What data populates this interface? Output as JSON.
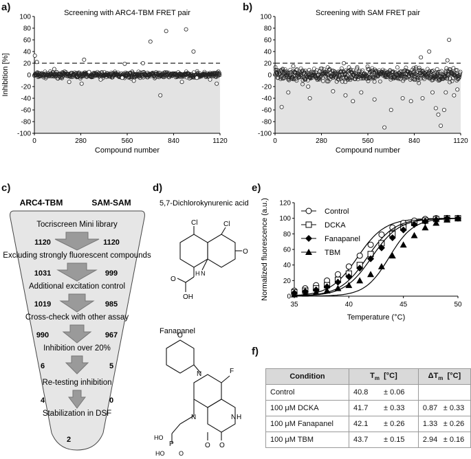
{
  "panels": {
    "a": "a)",
    "b": "b)",
    "c": "c)",
    "d": "d)",
    "e": "e)",
    "f": "f)"
  },
  "chart_data": [
    {
      "id": "a",
      "type": "scatter",
      "title": "Screening with ARC4-TBM FRET pair",
      "xlabel": "Compound number",
      "ylabel": "Inhibition [%]",
      "xlim": [
        0,
        1120
      ],
      "ylim": [
        -100,
        100
      ],
      "xticks": [
        0,
        280,
        560,
        840,
        1120
      ],
      "yticks": [
        -100,
        -80,
        -60,
        -40,
        -20,
        0,
        20,
        40,
        60,
        80,
        100
      ],
      "threshold": 20,
      "n": 1120,
      "spread": 4,
      "outliers": [
        [
          3,
          33
        ],
        [
          15,
          22
        ],
        [
          120,
          10
        ],
        [
          210,
          -12
        ],
        [
          300,
          26
        ],
        [
          285,
          -15
        ],
        [
          330,
          5
        ],
        [
          400,
          -8
        ],
        [
          530,
          -5
        ],
        [
          545,
          19
        ],
        [
          600,
          -10
        ],
        [
          655,
          20
        ],
        [
          700,
          57
        ],
        [
          760,
          -35
        ],
        [
          795,
          75
        ],
        [
          890,
          -12
        ],
        [
          915,
          78
        ],
        [
          960,
          40
        ],
        [
          980,
          -5
        ],
        [
          1060,
          -8
        ],
        [
          1100,
          -15
        ]
      ]
    },
    {
      "id": "b",
      "type": "scatter",
      "title": "Screening with SAM FRET pair",
      "xlabel": "Compound number",
      "ylabel": "",
      "xlim": [
        0,
        1120
      ],
      "ylim": [
        -100,
        100
      ],
      "xticks": [
        0,
        280,
        560,
        840,
        1120
      ],
      "yticks": [
        -100,
        -80,
        -60,
        -40,
        -20,
        0,
        20,
        40,
        60,
        80,
        100
      ],
      "threshold": 20,
      "n": 1120,
      "spread": 9,
      "outliers": [
        [
          40,
          -55
        ],
        [
          80,
          -30
        ],
        [
          110,
          15
        ],
        [
          200,
          -20
        ],
        [
          210,
          -40
        ],
        [
          350,
          -28
        ],
        [
          415,
          20
        ],
        [
          425,
          -35
        ],
        [
          470,
          -45
        ],
        [
          520,
          -30
        ],
        [
          600,
          -42
        ],
        [
          660,
          -90
        ],
        [
          700,
          -60
        ],
        [
          770,
          -40
        ],
        [
          820,
          -45
        ],
        [
          880,
          30
        ],
        [
          890,
          -40
        ],
        [
          930,
          40
        ],
        [
          950,
          -30
        ],
        [
          970,
          -57
        ],
        [
          985,
          -68
        ],
        [
          1000,
          -87
        ],
        [
          1020,
          -60
        ],
        [
          1030,
          -30
        ],
        [
          1040,
          25
        ],
        [
          1050,
          60
        ],
        [
          1080,
          -35
        ],
        [
          1100,
          -25
        ]
      ]
    },
    {
      "id": "e",
      "type": "line",
      "title": "",
      "xlabel": "Temperature (°C)",
      "ylabel": "Normalized fluorescence (a.u.)",
      "xlim": [
        35,
        50
      ],
      "ylim": [
        0,
        120
      ],
      "xticks": [
        35,
        40,
        45,
        50
      ],
      "yticks": [
        0,
        20,
        40,
        60,
        80,
        100,
        120
      ],
      "legend_position": "top-left",
      "x": [
        35,
        36,
        37,
        38,
        39,
        40,
        41,
        42,
        43,
        44,
        45,
        46,
        47,
        48,
        49,
        50
      ],
      "series": [
        {
          "name": "Control",
          "marker": "circle",
          "tm": 40.8,
          "slope": 1.25,
          "values": [
            7,
            10,
            14,
            20,
            28,
            38,
            52,
            66,
            79,
            88,
            94,
            97,
            99,
            100,
            100,
            100
          ]
        },
        {
          "name": "DCKA",
          "marker": "square",
          "tm": 41.7,
          "slope": 1.25,
          "values": [
            5,
            7,
            10,
            14,
            21,
            29,
            40,
            54,
            68,
            80,
            88,
            94,
            97,
            99,
            100,
            100
          ]
        },
        {
          "name": "Fanapanel",
          "marker": "diamond",
          "tm": 42.1,
          "slope": 1.25,
          "values": [
            4,
            6,
            8,
            12,
            18,
            25,
            36,
            48,
            62,
            75,
            85,
            92,
            96,
            98,
            100,
            100
          ]
        },
        {
          "name": "TBM",
          "marker": "triangle",
          "tm": 43.7,
          "slope": 1.1,
          "values": [
            2,
            3,
            5,
            7,
            10,
            14,
            20,
            28,
            38,
            52,
            66,
            78,
            88,
            94,
            98,
            100
          ]
        }
      ]
    }
  ],
  "funnel": {
    "col1": "ARC4-TBM",
    "col2": "SAM-SAM",
    "steps": [
      {
        "label": "Tocriscreen Mini library",
        "left": "1120",
        "right": "1120"
      },
      {
        "label": "Excluding strongly fluorescent compounds",
        "left": "1031",
        "right": "999"
      },
      {
        "label": "Additional excitation control",
        "left": "1019",
        "right": "985"
      },
      {
        "label": "Cross-check with other assay",
        "left": "990",
        "right": "967"
      },
      {
        "label": "Inhibition over 20%",
        "left": "6",
        "right": "5"
      },
      {
        "label": "Re-testing inhibition",
        "left": "4",
        "right": "0"
      },
      {
        "label": "Stabilization in DSF",
        "left": "2",
        "right": ""
      }
    ]
  },
  "structures": {
    "dcka": {
      "name": "5,7-Dichlorokynurenic acid",
      "cl1": "Cl",
      "cl2": "Cl",
      "nh": "H",
      "n": "N",
      "o1": "O",
      "oh": "OH",
      "o2": "O"
    },
    "fanapanel": {
      "name": "Fanapanel",
      "o_morph": "O",
      "n_morph": "N",
      "cf3": "F",
      "n1": "N",
      "nh": "N",
      "h": "H",
      "p": "P",
      "ho1": "HO",
      "ho2": "HO",
      "o_p": "O",
      "o1": "O",
      "o2": "O"
    }
  },
  "table": {
    "headers": [
      "Condition",
      "T",
      "m",
      "[°C]",
      "ΔT",
      "m",
      "[°C]"
    ],
    "rows": [
      {
        "cond": "Control",
        "tm": "40.8",
        "tm_err": "± 0.06",
        "dtm": "",
        "dtm_err": ""
      },
      {
        "cond": "100 μM DCKA",
        "tm": "41.7",
        "tm_err": "± 0.33",
        "dtm": "0.87",
        "dtm_err": "± 0.33"
      },
      {
        "cond": "100 μM Fanapanel",
        "tm": "42.1",
        "tm_err": "± 0.26",
        "dtm": "1.33",
        "dtm_err": "± 0.26"
      },
      {
        "cond": "100 μM TBM",
        "tm": "43.7",
        "tm_err": "± 0.15",
        "dtm": "2.94",
        "dtm_err": "± 0.16"
      }
    ]
  }
}
